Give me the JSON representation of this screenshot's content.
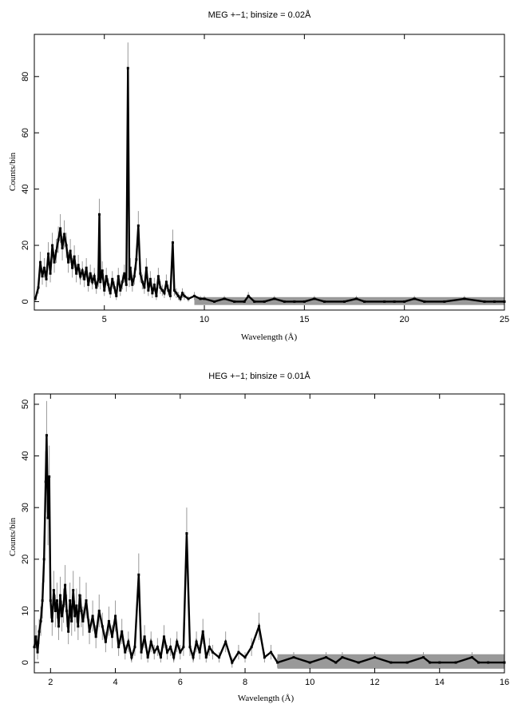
{
  "chart_data": [
    {
      "type": "line",
      "title": "MEG +−1; binsize = 0.02Å",
      "xlabel": "Wavelength (Å)",
      "ylabel": "Counts/bin",
      "xlim": [
        1.5,
        25
      ],
      "ylim": [
        -3,
        95
      ],
      "xticks": [
        5,
        10,
        15,
        20,
        25
      ],
      "yticks": [
        0,
        20,
        40,
        60,
        80
      ],
      "grid": false,
      "legend": "none",
      "colors": {
        "data": "#000000",
        "error": "#999999"
      },
      "x": [
        1.55,
        1.7,
        1.8,
        1.9,
        2.0,
        2.1,
        2.2,
        2.3,
        2.4,
        2.5,
        2.6,
        2.7,
        2.8,
        2.9,
        3.0,
        3.1,
        3.2,
        3.3,
        3.4,
        3.5,
        3.6,
        3.7,
        3.8,
        3.9,
        4.0,
        4.1,
        4.2,
        4.3,
        4.4,
        4.5,
        4.6,
        4.7,
        4.75,
        4.8,
        4.9,
        5.0,
        5.1,
        5.2,
        5.3,
        5.4,
        5.5,
        5.6,
        5.7,
        5.8,
        5.9,
        6.0,
        6.1,
        6.18,
        6.25,
        6.3,
        6.4,
        6.5,
        6.6,
        6.7,
        6.8,
        6.9,
        7.0,
        7.1,
        7.2,
        7.3,
        7.4,
        7.5,
        7.6,
        7.7,
        7.8,
        7.9,
        8.0,
        8.1,
        8.2,
        8.3,
        8.42,
        8.5,
        8.6,
        8.7,
        8.8,
        8.9,
        9.0,
        9.2,
        9.5,
        9.8,
        10.0,
        10.5,
        11.0,
        11.5,
        12.0,
        12.2,
        12.5,
        13.0,
        13.5,
        14.0,
        14.5,
        15.0,
        15.5,
        16.0,
        17.0,
        17.6,
        18.0,
        19.0,
        19.5,
        20.0,
        20.5,
        21.0,
        22.0,
        23.0,
        24.0,
        24.5,
        25.0
      ],
      "y": [
        1,
        5,
        14,
        9,
        12,
        8,
        17,
        10,
        20,
        14,
        18,
        22,
        26,
        19,
        24,
        20,
        14,
        18,
        12,
        16,
        10,
        13,
        9,
        11,
        8,
        12,
        6,
        10,
        7,
        9,
        5,
        8,
        31,
        7,
        11,
        4,
        9,
        6,
        3,
        8,
        5,
        2,
        9,
        4,
        7,
        10,
        6,
        83,
        8,
        12,
        6,
        9,
        15,
        27,
        10,
        7,
        5,
        12,
        4,
        8,
        3,
        6,
        2,
        9,
        5,
        4,
        3,
        7,
        4,
        2,
        21,
        4,
        3,
        2,
        1,
        3,
        2,
        1,
        2,
        1,
        1,
        0,
        1,
        0,
        0,
        2,
        0,
        0,
        1,
        0,
        0,
        0,
        1,
        0,
        0,
        1,
        0,
        0,
        0,
        0,
        1,
        0,
        0,
        1,
        0,
        0,
        0
      ]
    },
    {
      "type": "line",
      "title": "HEG +−1; binsize = 0.01Å",
      "xlabel": "Wavelength (Å)",
      "ylabel": "Counts/bin",
      "xlim": [
        1.5,
        16
      ],
      "ylim": [
        -2,
        52
      ],
      "xticks": [
        2,
        4,
        6,
        8,
        10,
        12,
        14,
        16
      ],
      "yticks": [
        0,
        10,
        20,
        30,
        40,
        50
      ],
      "grid": false,
      "legend": "none",
      "colors": {
        "data": "#000000",
        "error": "#999999"
      },
      "x": [
        1.5,
        1.55,
        1.6,
        1.65,
        1.7,
        1.75,
        1.8,
        1.85,
        1.88,
        1.92,
        1.96,
        2.0,
        2.05,
        2.1,
        2.15,
        2.2,
        2.25,
        2.3,
        2.35,
        2.4,
        2.45,
        2.5,
        2.55,
        2.6,
        2.65,
        2.7,
        2.75,
        2.8,
        2.85,
        2.9,
        2.95,
        3.0,
        3.1,
        3.2,
        3.3,
        3.4,
        3.5,
        3.6,
        3.7,
        3.8,
        3.9,
        4.0,
        4.1,
        4.2,
        4.3,
        4.4,
        4.5,
        4.6,
        4.72,
        4.8,
        4.9,
        5.0,
        5.1,
        5.2,
        5.3,
        5.4,
        5.5,
        5.6,
        5.7,
        5.8,
        5.9,
        6.0,
        6.1,
        6.2,
        6.3,
        6.4,
        6.5,
        6.6,
        6.7,
        6.8,
        6.9,
        7.0,
        7.2,
        7.4,
        7.6,
        7.8,
        8.0,
        8.2,
        8.43,
        8.6,
        8.8,
        9.0,
        9.5,
        10.0,
        10.5,
        10.8,
        11.0,
        11.5,
        12.0,
        12.5,
        13.0,
        13.5,
        13.7,
        14.0,
        14.5,
        15.0,
        15.2,
        15.5,
        16.0
      ],
      "y": [
        3,
        5,
        2,
        6,
        8,
        12,
        20,
        35,
        44,
        28,
        36,
        12,
        8,
        14,
        10,
        12,
        7,
        13,
        9,
        11,
        15,
        10,
        6,
        12,
        8,
        14,
        9,
        11,
        7,
        13,
        10,
        8,
        12,
        6,
        9,
        5,
        10,
        7,
        4,
        8,
        5,
        9,
        3,
        6,
        2,
        4,
        1,
        3,
        17,
        2,
        5,
        1,
        4,
        2,
        3,
        1,
        5,
        2,
        3,
        1,
        4,
        2,
        3,
        25,
        3,
        1,
        4,
        2,
        6,
        1,
        3,
        2,
        1,
        4,
        0,
        2,
        1,
        3,
        7,
        1,
        2,
        0,
        1,
        0,
        1,
        0,
        1,
        0,
        1,
        0,
        0,
        1,
        0,
        0,
        0,
        1,
        0,
        0,
        0
      ]
    }
  ]
}
